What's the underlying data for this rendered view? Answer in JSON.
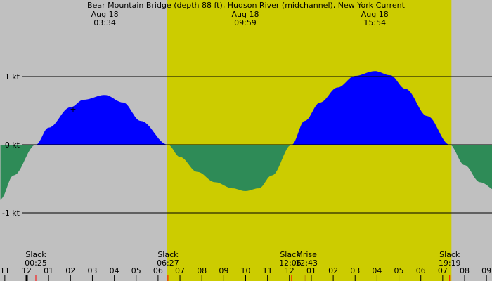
{
  "chart_data": {
    "type": "area",
    "title": "Bear Mountain Bridge (depth 88 ft), Hudson River (midchannel), New York Current",
    "x_unit": "hours since 00:00 Aug 18",
    "ylim": [
      -1.6,
      1.6
    ],
    "y_ticks": [
      {
        "value": 1,
        "label": "1 kt"
      },
      {
        "value": 0,
        "label": "0 kt"
      },
      {
        "value": -1,
        "label": "-1 kt"
      }
    ],
    "daylight": {
      "start_hour": 6.4,
      "end_hour": 19.4
    },
    "colors": {
      "night": "#c0c0c0",
      "day": "#cccc00",
      "flood": "#0000ff",
      "ebb": "#2e8b57",
      "line": "#000000"
    },
    "peaks": [
      {
        "date": "Aug 18",
        "time": "03:34",
        "hour": 3.567
      },
      {
        "date": "Aug 18",
        "time": "09:59",
        "hour": 9.983
      },
      {
        "date": "Aug 18",
        "time": "15:54",
        "hour": 15.9
      }
    ],
    "events": [
      {
        "label": "Slack",
        "time": "00:25",
        "hour": 0.417
      },
      {
        "label": "Slack",
        "time": "06:27",
        "hour": 6.45
      },
      {
        "label": "Slack",
        "time": "12:06",
        "hour": 12.1
      },
      {
        "label": "Mrise",
        "time": "12:43",
        "hour": 12.717
      },
      {
        "label": "Slack",
        "time": "19:19",
        "hour": 19.317
      }
    ],
    "x_ticks": [
      {
        "hour": -1,
        "label": "11"
      },
      {
        "hour": 0,
        "label": "12"
      },
      {
        "hour": 1,
        "label": "01"
      },
      {
        "hour": 2,
        "label": "02"
      },
      {
        "hour": 3,
        "label": "03"
      },
      {
        "hour": 4,
        "label": "04"
      },
      {
        "hour": 5,
        "label": "05"
      },
      {
        "hour": 6,
        "label": "06"
      },
      {
        "hour": 7,
        "label": "07"
      },
      {
        "hour": 8,
        "label": "08"
      },
      {
        "hour": 9,
        "label": "09"
      },
      {
        "hour": 10,
        "label": "10"
      },
      {
        "hour": 11,
        "label": "11"
      },
      {
        "hour": 12,
        "label": "12"
      },
      {
        "hour": 13,
        "label": "01"
      },
      {
        "hour": 14,
        "label": "02"
      },
      {
        "hour": 15,
        "label": "03"
      },
      {
        "hour": 16,
        "label": "04"
      },
      {
        "hour": 17,
        "label": "05"
      },
      {
        "hour": 18,
        "label": "06"
      },
      {
        "hour": 19,
        "label": "07"
      },
      {
        "hour": 20,
        "label": "08"
      },
      {
        "hour": 21,
        "label": "09"
      }
    ],
    "series": [
      {
        "values": [
          [
            -1.2,
            -0.8
          ],
          [
            -0.6,
            -0.45
          ],
          [
            0.417,
            0
          ],
          [
            1.0,
            0.25
          ],
          [
            2.0,
            0.55
          ],
          [
            2.6,
            0.66
          ],
          [
            3.567,
            0.73
          ],
          [
            4.4,
            0.62
          ],
          [
            5.2,
            0.35
          ],
          [
            6.45,
            0
          ],
          [
            7.0,
            -0.18
          ],
          [
            7.8,
            -0.4
          ],
          [
            8.6,
            -0.55
          ],
          [
            9.4,
            -0.64
          ],
          [
            9.983,
            -0.68
          ],
          [
            10.6,
            -0.64
          ],
          [
            11.2,
            -0.45
          ],
          [
            12.1,
            0
          ],
          [
            12.7,
            0.35
          ],
          [
            13.4,
            0.62
          ],
          [
            14.2,
            0.84
          ],
          [
            15.0,
            1.01
          ],
          [
            15.9,
            1.08
          ],
          [
            16.6,
            1.02
          ],
          [
            17.3,
            0.82
          ],
          [
            18.3,
            0.42
          ],
          [
            19.317,
            0
          ],
          [
            20.0,
            -0.3
          ],
          [
            20.7,
            -0.55
          ],
          [
            21.5,
            -0.68
          ]
        ]
      }
    ]
  }
}
